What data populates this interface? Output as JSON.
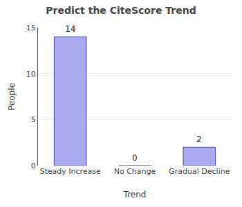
{
  "chart_data": {
    "type": "bar",
    "title": "Predict the CiteScore Trend",
    "categories": [
      "Steady Increase",
      "No Change",
      "Gradual Decline"
    ],
    "values": [
      14,
      0,
      2
    ],
    "color": "#aaaaee",
    "xlabel": "Trend",
    "ylabel": "People",
    "ylim": [
      0,
      15
    ],
    "yticks": [
      0,
      5,
      10,
      15
    ],
    "grid": true,
    "data_labels": true
  }
}
